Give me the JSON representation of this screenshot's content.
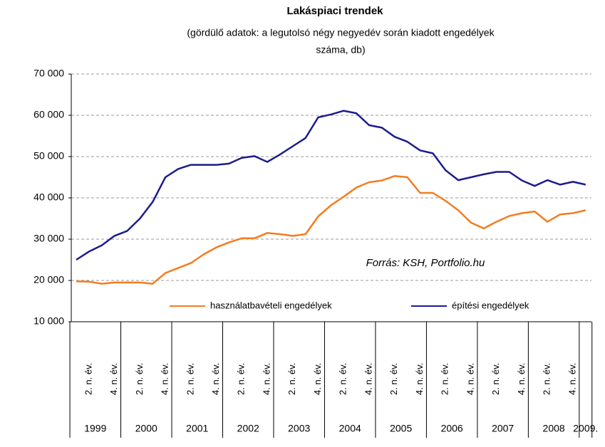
{
  "chart_data": {
    "type": "line",
    "title": "Lakáspiaci trendek",
    "subtitle": [
      "(gördülő adatok: a legutolsó négy negyedév során kiadott engedélyek",
      "száma, db)"
    ],
    "annotation": "Forrás: KSH, Portfolio.hu",
    "categories": [
      null,
      "2. n. év.",
      null,
      "4. n. év.",
      null,
      "2. n. év.",
      null,
      "4. n. év.",
      null,
      "2. n. év.",
      null,
      "4. n. év.",
      null,
      "2. n. év.",
      null,
      "4. n. év.",
      null,
      "2. n. év.",
      null,
      "4. n. év.",
      null,
      "2. n. év.",
      null,
      "4. n. év.",
      null,
      "2. n. év.",
      null,
      "4. n. év.",
      null,
      "2. n. év.",
      null,
      "4. n. év.",
      null,
      "2. n. év.",
      null,
      "4. n. év.",
      null,
      "2. n. év.",
      null,
      "4. n. év.",
      null
    ],
    "years": [
      "1999",
      "2000",
      "2001",
      "2002",
      "2003",
      "2004",
      "2005",
      "2006",
      "2007",
      "2008",
      "2009."
    ],
    "series": [
      {
        "name": "használatbavételi engedélyek",
        "color": "#f47c20",
        "values": [
          19800,
          19700,
          19200,
          19500,
          19500,
          19500,
          19200,
          21800,
          23000,
          24200,
          26300,
          28000,
          29200,
          30200,
          30200,
          31500,
          31200,
          30800,
          31200,
          35500,
          38200,
          40300,
          42500,
          43800,
          44200,
          45300,
          45000,
          41200,
          41200,
          39300,
          37000,
          34000,
          32600,
          34200,
          35600,
          36300,
          36700,
          34200,
          36000,
          36300,
          37000
        ]
      },
      {
        "name": "építési engedélyek",
        "color": "#1c1c8c",
        "values": [
          25000,
          27000,
          28500,
          30800,
          32000,
          35000,
          39000,
          45000,
          47000,
          48000,
          48000,
          48000,
          48300,
          49700,
          50100,
          48700,
          50500,
          52500,
          54500,
          59500,
          60200,
          61100,
          60500,
          57600,
          57000,
          54800,
          53600,
          51500,
          50800,
          46700,
          44300,
          45000,
          45700,
          46300,
          46300,
          44200,
          42900,
          44300,
          43200,
          43900,
          43200
        ]
      }
    ],
    "ylim": [
      10000,
      70000
    ],
    "yticks": [
      {
        "value": 10000,
        "label": "10 000"
      },
      {
        "value": 20000,
        "label": "20 000"
      },
      {
        "value": 30000,
        "label": "30 000"
      },
      {
        "value": 40000,
        "label": "40 000"
      },
      {
        "value": 50000,
        "label": "50 000"
      },
      {
        "value": 60000,
        "label": "60 000"
      },
      {
        "value": 70000,
        "label": "70 000"
      }
    ],
    "grid": true
  }
}
